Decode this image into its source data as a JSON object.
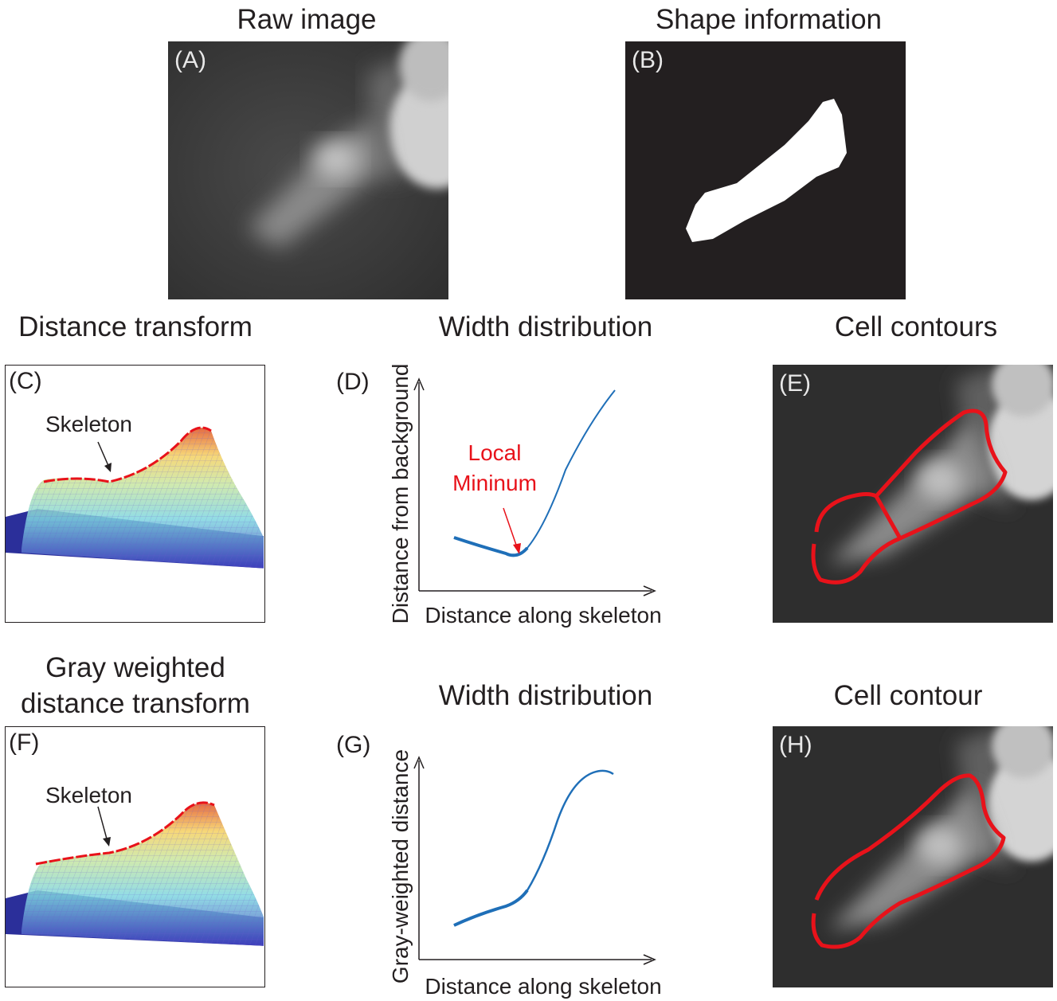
{
  "titles": {
    "raw": "Raw image",
    "shape": "Shape information",
    "dist": "Distance transform",
    "width1": "Width distribution",
    "contours": "Cell contours",
    "gray_line1": "Gray weighted",
    "gray_line2": "distance transform",
    "width2": "Width distribution",
    "contour": "Cell contour"
  },
  "panel_labels": {
    "A": "(A)",
    "B": "(B)",
    "C": "(C)",
    "D": "(D)",
    "E": "(E)",
    "F": "(F)",
    "G": "(G)",
    "H": "(H)"
  },
  "annotations": {
    "skeleton_c": "Skeleton",
    "skeleton_f": "Skeleton",
    "local_line1": "Local",
    "local_line2": "Mininum"
  },
  "axes": {
    "d_y": "Distance from background",
    "d_x": "Distance along skeleton",
    "g_y": "Gray-weighted distance",
    "g_x": "Distance along skeleton"
  },
  "colors": {
    "curve": "#1f6fb8",
    "contour": "#e8121a",
    "annotation": "#e8121a",
    "mesh_floor": "#2b2f9a"
  }
}
